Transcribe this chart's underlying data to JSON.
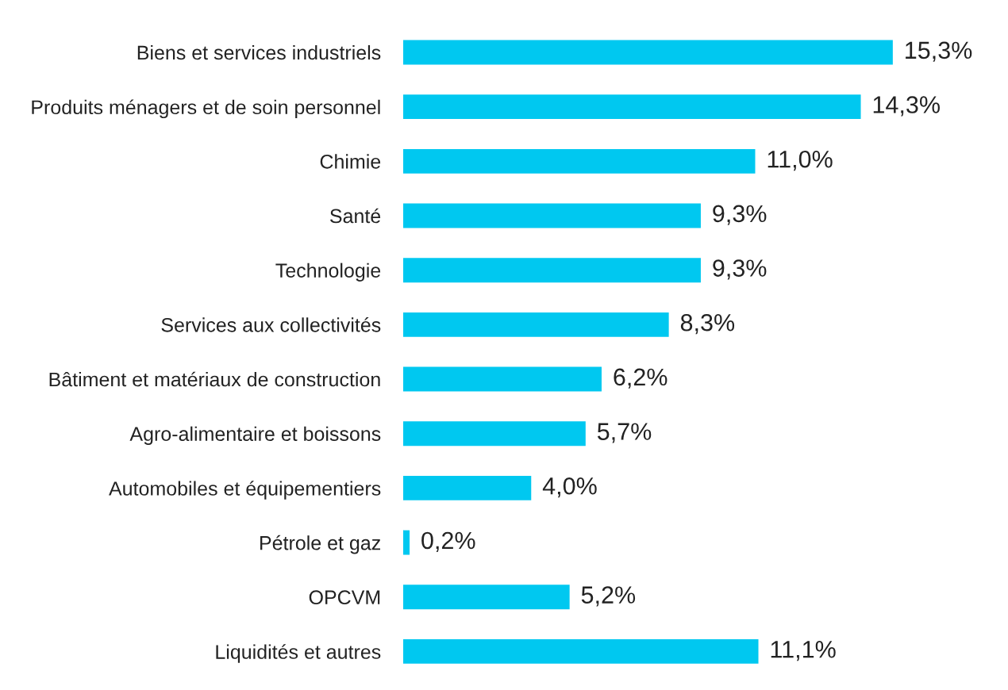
{
  "chart_data": {
    "type": "bar",
    "orientation": "horizontal",
    "categories": [
      "Biens et services industriels",
      "Produits ménagers et de soin personnel",
      "Chimie",
      "Santé",
      "Technologie",
      "Services aux collectivités",
      "Bâtiment et matériaux de construction",
      "Agro-alimentaire et boissons",
      "Automobiles et équipementiers",
      "Pétrole et gaz",
      "OPCVM",
      "Liquidités et autres"
    ],
    "values": [
      15.3,
      14.3,
      11.0,
      9.3,
      9.3,
      8.3,
      6.2,
      5.7,
      4.0,
      0.2,
      5.2,
      11.1
    ],
    "value_labels": [
      "15,3%",
      "14,3%",
      "11,0%",
      "9,3%",
      "9,3%",
      "8,3%",
      "6,2%",
      "5,7%",
      "4,0%",
      "0,2%",
      "5,2%",
      "11,1%"
    ],
    "color": "#00c8f0",
    "grid": false,
    "legend": false
  }
}
